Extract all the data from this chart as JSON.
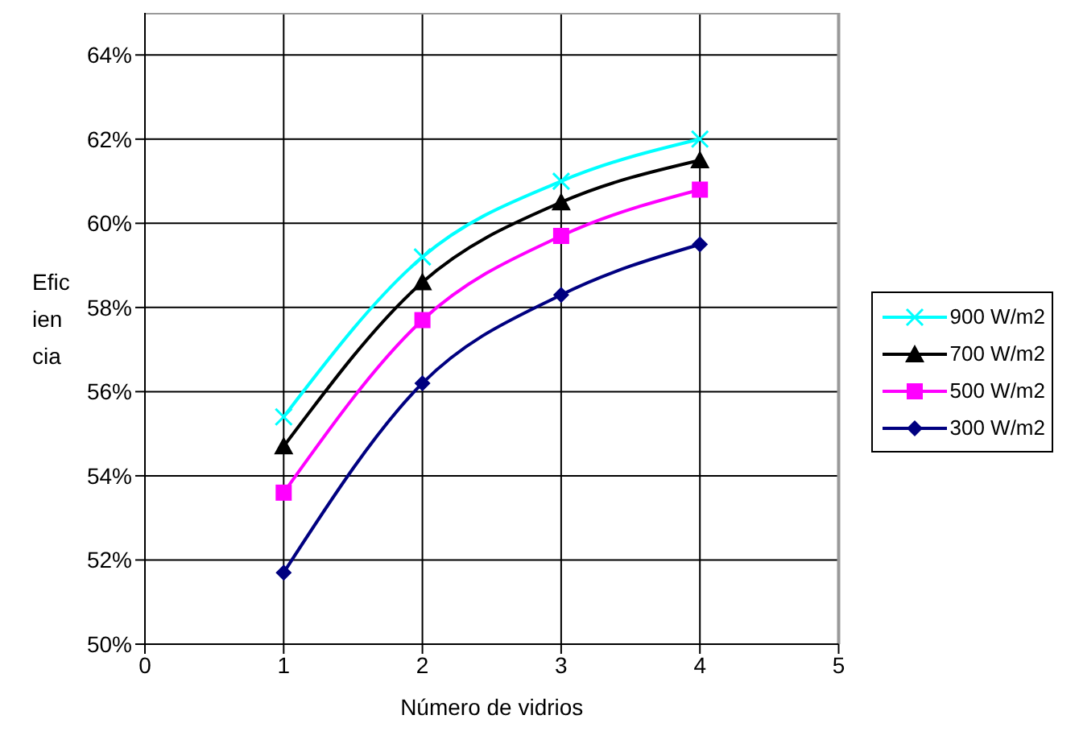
{
  "chart_data": {
    "type": "line",
    "xlabel": "Número de vidrios",
    "ylabel": "Eficiencia",
    "x": [
      1,
      2,
      3,
      4
    ],
    "series": [
      {
        "name": "900 W/m2",
        "color": "#00ffff",
        "marker": "cross",
        "values": [
          55.4,
          59.2,
          61.0,
          62.0
        ]
      },
      {
        "name": "700 W/m2",
        "color": "#000000",
        "marker": "triangle",
        "values": [
          54.7,
          58.6,
          60.5,
          61.5
        ]
      },
      {
        "name": "500 W/m2",
        "color": "#ff00ff",
        "marker": "square",
        "values": [
          53.6,
          57.7,
          59.7,
          60.8
        ]
      },
      {
        "name": "300 W/m2",
        "color": "#000080",
        "marker": "diamond",
        "values": [
          51.7,
          56.2,
          58.3,
          59.5
        ]
      }
    ],
    "xlim": [
      0,
      5
    ],
    "xticks": [
      0,
      1,
      2,
      3,
      4,
      5
    ],
    "ylim": [
      50,
      65
    ],
    "yticks": [
      {
        "value": 50,
        "label": "50%"
      },
      {
        "value": 52,
        "label": "52%"
      },
      {
        "value": 54,
        "label": "54%"
      },
      {
        "value": 56,
        "label": "56%"
      },
      {
        "value": 58,
        "label": "58%"
      },
      {
        "value": 60,
        "label": "60%"
      },
      {
        "value": 62,
        "label": "62%"
      },
      {
        "value": 64,
        "label": "64%"
      }
    ],
    "grid": true,
    "legend": "right"
  }
}
